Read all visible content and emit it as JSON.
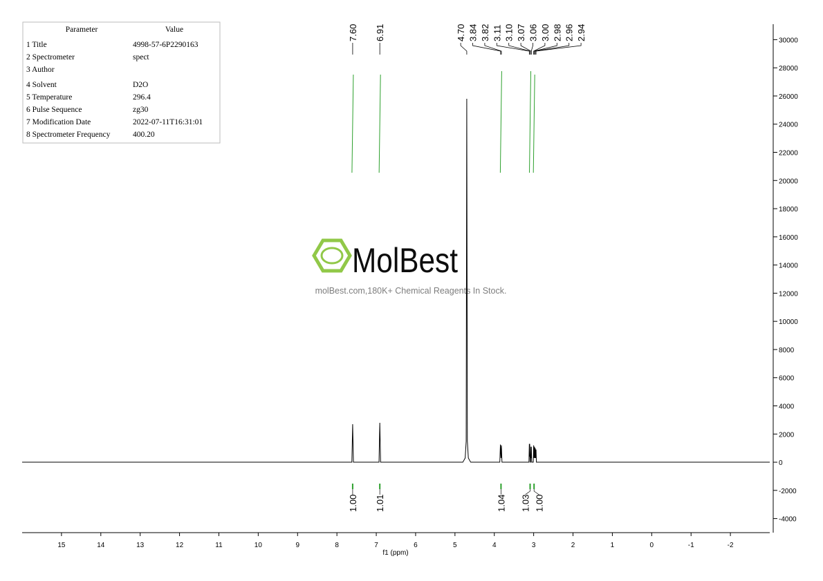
{
  "chart_data": {
    "type": "line",
    "xlabel": "f1 (ppm)",
    "color": "#000000",
    "x": [
      16,
      7.62,
      7.6,
      7.58,
      6.93,
      6.91,
      6.89,
      4.8,
      4.74,
      4.715,
      4.7,
      4.685,
      4.66,
      4.6,
      3.86,
      3.845,
      3.83,
      3.82,
      3.805,
      3.12,
      3.11,
      3.105,
      3.1,
      3.09,
      3.08,
      3.07,
      3.065,
      3.06,
      3.05,
      3.01,
      3.0,
      2.99,
      2.98,
      2.97,
      2.96,
      2.95,
      2.94,
      2.93,
      -3
    ],
    "values": [
      0,
      0,
      2700,
      0,
      0,
      2800,
      0,
      0,
      300,
      1500,
      25800,
      1500,
      300,
      0,
      0,
      1250,
      300,
      1200,
      0,
      0,
      1300,
      400,
      1300,
      0,
      0,
      1100,
      300,
      1100,
      0,
      0,
      1200,
      300,
      1100,
      300,
      1000,
      300,
      900,
      0,
      0
    ],
    "xlim": [
      16,
      -3
    ],
    "xticks": [
      15,
      14,
      13,
      12,
      11,
      10,
      9,
      8,
      7,
      6,
      5,
      4,
      3,
      2,
      1,
      0,
      -1,
      -2
    ],
    "ylim": [
      -5000,
      31000
    ],
    "yticks": [
      30000,
      28000,
      26000,
      24000,
      22000,
      20000,
      18000,
      16000,
      14000,
      12000,
      10000,
      8000,
      6000,
      4000,
      2000,
      0,
      -2000,
      -4000
    ],
    "integral_color": "#2ca02c",
    "peaks": [
      {
        "value": 7.6,
        "label": "7.60"
      },
      {
        "value": 6.91,
        "label": "6.91"
      },
      {
        "value": 4.7,
        "label": "4.70"
      },
      {
        "value": 3.84,
        "label": "3.84"
      },
      {
        "value": 3.82,
        "label": "3.82"
      },
      {
        "value": 3.11,
        "label": "3.11"
      },
      {
        "value": 3.1,
        "label": "3.10"
      },
      {
        "value": 3.07,
        "label": "3.07"
      },
      {
        "value": 3.06,
        "label": "3.06"
      },
      {
        "value": 3.0,
        "label": "3.00"
      },
      {
        "value": 2.98,
        "label": "2.98"
      },
      {
        "value": 2.96,
        "label": "2.96"
      },
      {
        "value": 2.94,
        "label": "2.94"
      }
    ],
    "integrals": [
      {
        "x": 7.6,
        "value": 1,
        "label": "1.00"
      },
      {
        "x": 6.91,
        "value": 1.01
      },
      {
        "x": 3.83,
        "value": 1.04
      },
      {
        "x": 3.09,
        "value": 1.03
      },
      {
        "x": 2.99,
        "value": 1,
        "label": "1.00"
      }
    ]
  },
  "parameters": {
    "header": [
      "Parameter",
      "Value"
    ],
    "rows": [
      [
        "1 Title",
        "4998-57-6P2290163"
      ],
      [
        "2 Spectrometer",
        "spect"
      ],
      [
        "3 Author"
      ],
      [
        "4 Solvent",
        "D2O"
      ],
      [
        "5 Temperature",
        "296.4"
      ],
      [
        "6 Pulse Sequence",
        "zg30"
      ],
      [
        "7 Modification Date",
        "2022-07-11T16:31:01"
      ],
      [
        "8 Spectrometer Frequency",
        "400.20"
      ]
    ]
  },
  "watermark": {
    "brand": "MolBest",
    "tagline": "molBest.com,180K+ Chemical Reagents In Stock."
  }
}
